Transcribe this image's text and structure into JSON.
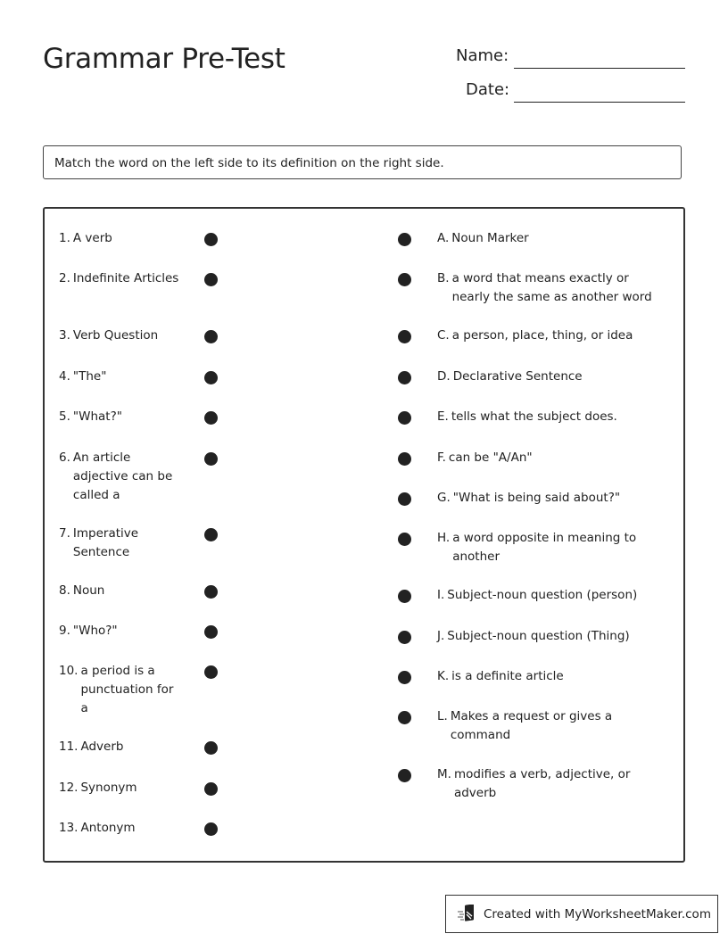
{
  "title": "Grammar Pre-Test",
  "header_fields": {
    "name_label": "Name:",
    "date_label": "Date:"
  },
  "instructions": "Match the word on the left side to its definition on the right side.",
  "left_items": [
    {
      "num": "1.",
      "text": "A verb"
    },
    {
      "num": "2.",
      "text": "Indefinite Articles"
    },
    {
      "num": "3.",
      "text": "Verb Question"
    },
    {
      "num": "4.",
      "text": "\"The\""
    },
    {
      "num": "5.",
      "text": "\"What?\""
    },
    {
      "num": "6.",
      "text": "An article adjective can be called a"
    },
    {
      "num": "7.",
      "text": "Imperative Sentence"
    },
    {
      "num": "8.",
      "text": "Noun"
    },
    {
      "num": "9.",
      "text": "\"Who?\""
    },
    {
      "num": "10.",
      "text": "a period is a punctuation for a"
    },
    {
      "num": "11.",
      "text": "Adverb"
    },
    {
      "num": "12.",
      "text": "Synonym"
    },
    {
      "num": "13.",
      "text": "Antonym"
    }
  ],
  "right_items": [
    {
      "num": "A.",
      "text": "Noun Marker"
    },
    {
      "num": "B.",
      "text": "a word that means exactly or nearly the same as another word"
    },
    {
      "num": "C.",
      "text": "a person, place, thing, or idea"
    },
    {
      "num": "D.",
      "text": "Declarative Sentence"
    },
    {
      "num": "E.",
      "text": "tells what the subject does."
    },
    {
      "num": "F.",
      "text": "can be \"A/An\""
    },
    {
      "num": "G.",
      "text": "\"What is being said about?\""
    },
    {
      "num": "H.",
      "text": "a word opposite in meaning to another"
    },
    {
      "num": "I.",
      "text": "Subject-noun question (person)"
    },
    {
      "num": "J.",
      "text": "Subject-noun question (Thing)"
    },
    {
      "num": "K.",
      "text": "is a definite article"
    },
    {
      "num": "L.",
      "text": "Makes a request or gives a command"
    },
    {
      "num": "M.",
      "text": "modifies a verb, adjective, or adverb"
    }
  ],
  "footer": {
    "text": "Created with MyWorksheetMaker.com",
    "icon": "worksheet-maker-logo-icon"
  }
}
